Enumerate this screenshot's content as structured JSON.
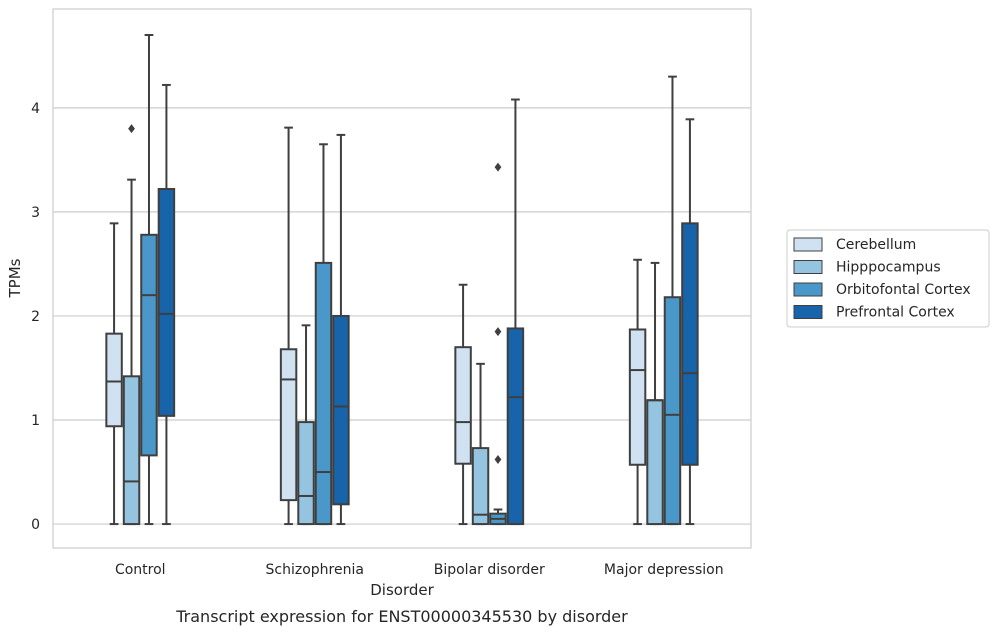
{
  "chart_data": {
    "type": "box",
    "xlabel": "Disorder",
    "ylabel": "TPMs",
    "caption": "Transcript expression for ENST00000345530 by disorder",
    "ylim": [
      -0.23,
      4.95
    ],
    "yticks": [
      0,
      1,
      2,
      3,
      4
    ],
    "grid": "horizontal",
    "legend_position": "right",
    "categories": [
      "Control",
      "Schizophrenia",
      "Bipolar disorder",
      "Major depression"
    ],
    "series": [
      {
        "name": "Cerebellum",
        "color": "#d0e1f2",
        "boxes": [
          {
            "whisker_low": 0,
            "q1": 0.94,
            "median": 1.37,
            "q3": 1.83,
            "whisker_high": 2.89,
            "outliers": []
          },
          {
            "whisker_low": 0,
            "q1": 0.23,
            "median": 1.39,
            "q3": 1.68,
            "whisker_high": 3.81,
            "outliers": []
          },
          {
            "whisker_low": 0,
            "q1": 0.58,
            "median": 0.98,
            "q3": 1.7,
            "whisker_high": 2.3,
            "outliers": []
          },
          {
            "whisker_low": 0,
            "q1": 0.57,
            "median": 1.48,
            "q3": 1.87,
            "whisker_high": 2.54,
            "outliers": []
          }
        ]
      },
      {
        "name": "Hipppocampus",
        "color": "#94c4df",
        "boxes": [
          {
            "whisker_low": 0,
            "q1": 0,
            "median": 0.41,
            "q3": 1.42,
            "whisker_high": 3.31,
            "outliers": [
              3.8
            ]
          },
          {
            "whisker_low": 0,
            "q1": 0,
            "median": 0.27,
            "q3": 0.98,
            "whisker_high": 1.91,
            "outliers": []
          },
          {
            "whisker_low": 0,
            "q1": 0,
            "median": 0.09,
            "q3": 0.73,
            "whisker_high": 1.54,
            "outliers": []
          },
          {
            "whisker_low": 0,
            "q1": 0,
            "median": 1.19,
            "q3": 1.19,
            "whisker_high": 2.51,
            "outliers": []
          }
        ]
      },
      {
        "name": "Orbitofontal Cortex",
        "color": "#4a98c9",
        "boxes": [
          {
            "whisker_low": 0,
            "q1": 0.66,
            "median": 2.2,
            "q3": 2.78,
            "whisker_high": 4.7,
            "outliers": []
          },
          {
            "whisker_low": 0,
            "q1": 0,
            "median": 0.5,
            "q3": 2.51,
            "whisker_high": 3.65,
            "outliers": []
          },
          {
            "whisker_low": 0,
            "q1": 0,
            "median": 0.05,
            "q3": 0.1,
            "whisker_high": 0.14,
            "outliers": [
              0.62,
              1.85,
              3.43
            ]
          },
          {
            "whisker_low": 0,
            "q1": 0,
            "median": 1.05,
            "q3": 2.18,
            "whisker_high": 4.3,
            "outliers": []
          }
        ]
      },
      {
        "name": "Prefrontal Cortex",
        "color": "#1764ab",
        "boxes": [
          {
            "whisker_low": 0,
            "q1": 1.04,
            "median": 2.02,
            "q3": 3.22,
            "whisker_high": 4.22,
            "outliers": []
          },
          {
            "whisker_low": 0,
            "q1": 0.19,
            "median": 1.13,
            "q3": 2.0,
            "whisker_high": 3.74,
            "outliers": []
          },
          {
            "whisker_low": 0,
            "q1": 0,
            "median": 1.22,
            "q3": 1.88,
            "whisker_high": 4.08,
            "outliers": []
          },
          {
            "whisker_low": 0,
            "q1": 0.57,
            "median": 1.45,
            "q3": 2.89,
            "whisker_high": 3.89,
            "outliers": []
          }
        ]
      }
    ]
  },
  "colors": {
    "box_edge": "#3f3f3f",
    "grid": "#cccccc",
    "frame": "#cccccc",
    "text": "#262626"
  }
}
